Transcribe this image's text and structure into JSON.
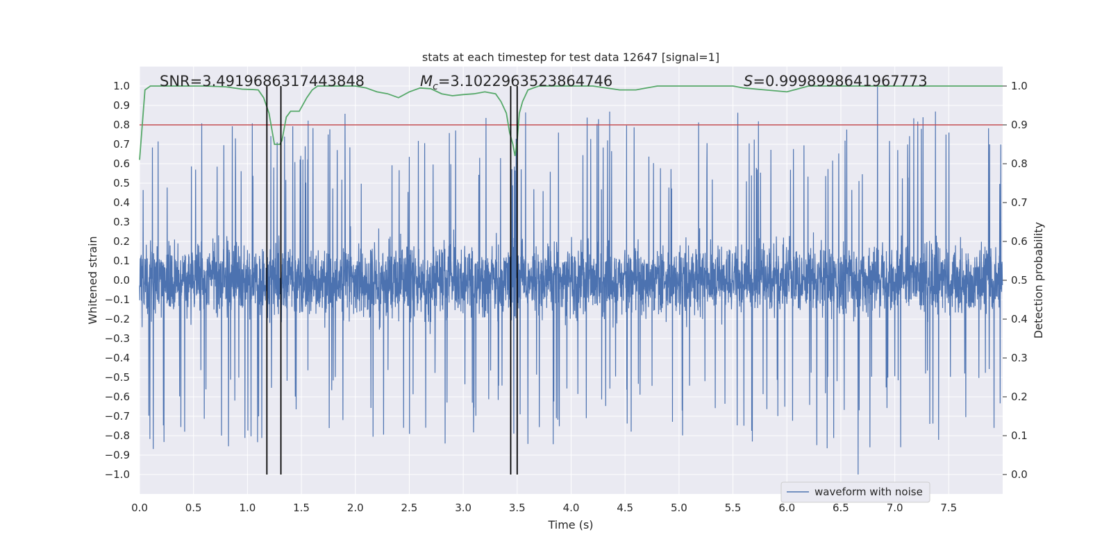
{
  "chart_data": {
    "type": "line",
    "title": "stats at each timestep for test data 12647 [signal=1]",
    "xlabel": "Time (s)",
    "ylabel_left": "Whitened strain",
    "ylabel_right": "Detection probability",
    "xlim": [
      0,
      8.0
    ],
    "ylim_left": [
      -1.1,
      1.1
    ],
    "ylim_right": [
      -0.05,
      1.05
    ],
    "x_ticks": [
      "0.0",
      "0.5",
      "1.0",
      "1.5",
      "2.0",
      "2.5",
      "3.0",
      "3.5",
      "4.0",
      "4.5",
      "5.0",
      "5.5",
      "6.0",
      "6.5",
      "7.0",
      "7.5"
    ],
    "y_ticks_left": [
      "1.0",
      "0.9",
      "0.8",
      "0.7",
      "0.6",
      "0.5",
      "0.4",
      "0.3",
      "0.2",
      "0.1",
      "0.0",
      "−0.1",
      "−0.2",
      "−0.3",
      "−0.4",
      "−0.5",
      "−0.6",
      "−0.7",
      "−0.8",
      "−0.9",
      "−1.0"
    ],
    "y_ticks_right": [
      "1.0",
      "0.9",
      "0.8",
      "0.7",
      "0.6",
      "0.5",
      "0.4",
      "0.3",
      "0.2",
      "0.1",
      "0.0"
    ],
    "annotations": {
      "snr": "SNR=3.4919686317443848",
      "mc_symbol": "M",
      "mc_sub": "c",
      "mc_value": "=3.1022963523864746",
      "s_symbol": "S",
      "s_value": "=0.9998998641967773"
    },
    "threshold_probability": 0.9,
    "vertical_lines": [
      1.18,
      1.31,
      3.44,
      3.5
    ],
    "waveform": {
      "name": "waveform with noise",
      "color": "#4c72b0",
      "n_samples": 4096,
      "duration": 8.0,
      "envelope_core": 0.4,
      "peak_high": 1.0,
      "peak_low": -1.0
    },
    "detection_probability": {
      "color": "#55a868",
      "t": [
        0.0,
        0.05,
        0.1,
        0.3,
        0.6,
        0.8,
        0.95,
        1.05,
        1.1,
        1.15,
        1.2,
        1.25,
        1.3,
        1.32,
        1.36,
        1.4,
        1.48,
        1.55,
        1.6,
        1.65,
        1.7,
        1.8,
        2.0,
        2.1,
        2.2,
        2.3,
        2.4,
        2.5,
        2.6,
        2.7,
        2.8,
        2.9,
        3.0,
        3.1,
        3.2,
        3.3,
        3.35,
        3.4,
        3.43,
        3.46,
        3.48,
        3.5,
        3.52,
        3.55,
        3.6,
        3.7,
        3.8,
        4.0,
        4.2,
        4.45,
        4.5,
        4.6,
        4.7,
        4.8,
        5.0,
        5.2,
        5.4,
        5.5,
        5.6,
        5.8,
        6.0,
        6.2,
        6.4,
        6.6,
        6.8,
        7.0,
        7.2,
        7.4,
        7.6,
        7.8,
        8.0
      ],
      "p": [
        0.81,
        0.99,
        1.0,
        1.0,
        1.0,
        0.998,
        0.992,
        0.991,
        0.99,
        0.97,
        0.93,
        0.85,
        0.85,
        0.86,
        0.92,
        0.935,
        0.935,
        0.97,
        0.99,
        1.0,
        1.0,
        1.0,
        1.0,
        0.995,
        0.985,
        0.98,
        0.97,
        0.985,
        0.995,
        0.993,
        0.98,
        0.975,
        0.978,
        0.98,
        0.985,
        0.98,
        0.96,
        0.93,
        0.88,
        0.85,
        0.82,
        0.86,
        0.93,
        0.96,
        0.99,
        1.0,
        1.0,
        1.0,
        1.0,
        0.99,
        0.99,
        0.99,
        0.995,
        1.0,
        1.0,
        1.0,
        1.0,
        1.0,
        0.995,
        0.99,
        0.985,
        1.0,
        1.0,
        1.0,
        1.0,
        1.0,
        1.0,
        1.0,
        1.0,
        1.0,
        1.0
      ]
    },
    "threshold_color": "#c44e52",
    "legend": {
      "label": "waveform with noise",
      "placement": "lower-right"
    }
  }
}
